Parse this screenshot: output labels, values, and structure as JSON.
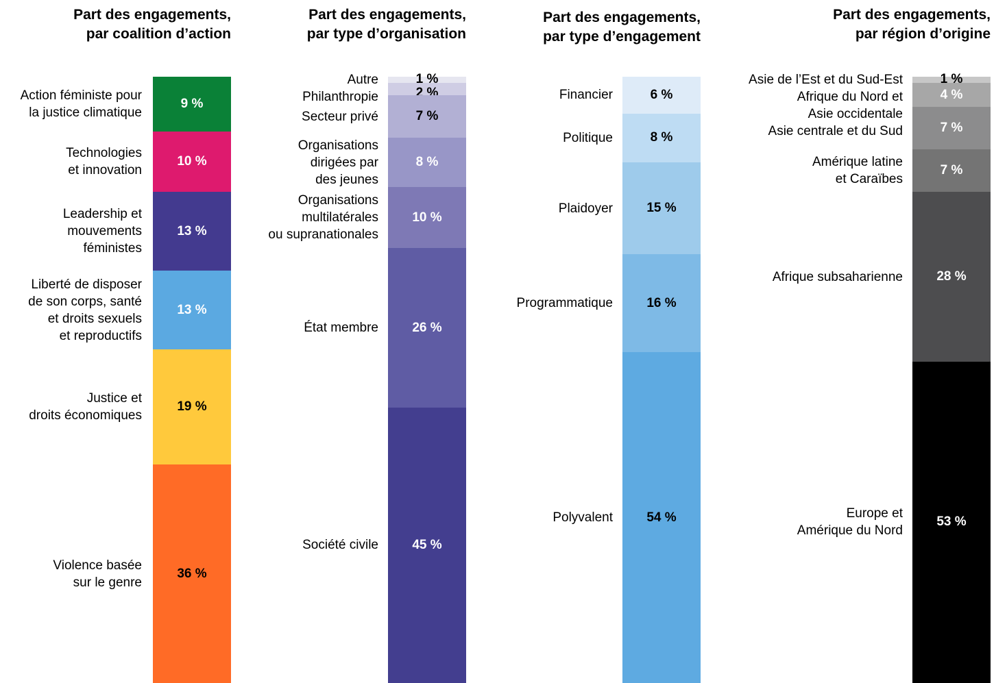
{
  "chart_data": [
    {
      "type": "stacked_bar",
      "title": [
        "Part des engagements,",
        "par coalition d’action"
      ],
      "series": [
        {
          "name": "Action féministe pour la justice climatique",
          "color": "#0a8137",
          "label_color": "#ffffff",
          "values": [
            9
          ],
          "value_labels": [
            "9 %"
          ]
        },
        {
          "name": "Technologies et innovation",
          "color": "#de1a6e",
          "label_color": "#ffffff",
          "values": [
            10
          ],
          "value_labels": [
            "10 %"
          ]
        },
        {
          "name": "Leadership et mouvements féministes",
          "color": "#433a8f",
          "label_color": "#ffffff",
          "values": [
            13
          ],
          "value_labels": [
            "13 %"
          ]
        },
        {
          "name": "Liberté de disposer de son corps, santé et droits sexuels et reproductifs",
          "color": "#5ba9e1",
          "label_color": "#ffffff",
          "values": [
            13
          ],
          "value_labels": [
            "13 %"
          ]
        },
        {
          "name": "Justice et droits économiques",
          "color": "#ffc93c",
          "label_color": "#000000",
          "values": [
            19
          ],
          "value_labels": [
            "19 %"
          ]
        },
        {
          "name": "Violence basée sur le genre",
          "color": "#ff6b26",
          "label_color": "#000000",
          "values": [
            36
          ],
          "value_labels": [
            "36 %"
          ]
        }
      ]
    },
    {
      "type": "stacked_bar",
      "title": [
        "Part des engagements,",
        "par type d’organisation"
      ],
      "series": [
        {
          "name": "Autre",
          "color": "#e6e6f0",
          "label_color": "#000000",
          "values": [
            1
          ],
          "value_labels": [
            "1 %"
          ]
        },
        {
          "name": "Philanthropie",
          "color": "#cfcde4",
          "label_color": "#000000",
          "values": [
            2
          ],
          "value_labels": [
            "2 %"
          ]
        },
        {
          "name": "Secteur privé",
          "color": "#b2b0d4",
          "label_color": "#000000",
          "values": [
            7
          ],
          "value_labels": [
            "7 %"
          ]
        },
        {
          "name": "Organisations dirigées par des jeunes",
          "color": "#9896c7",
          "label_color": "#ffffff",
          "values": [
            8
          ],
          "value_labels": [
            "8 %"
          ]
        },
        {
          "name": "Organisations multilatérales ou supranationales",
          "color": "#7e79b5",
          "label_color": "#ffffff",
          "values": [
            10
          ],
          "value_labels": [
            "10 %"
          ]
        },
        {
          "name": "État membre",
          "color": "#5f5ca4",
          "label_color": "#ffffff",
          "values": [
            26
          ],
          "value_labels": [
            "26 %"
          ]
        },
        {
          "name": "Société civile",
          "color": "#433e8f",
          "label_color": "#ffffff",
          "values": [
            45
          ],
          "value_labels": [
            "45 %"
          ]
        }
      ]
    },
    {
      "type": "stacked_bar",
      "title": [
        "Part des engagements,",
        "par type d’engagement"
      ],
      "series": [
        {
          "name": "Financier",
          "color": "#deebf8",
          "label_color": "#000000",
          "values": [
            6
          ],
          "value_labels": [
            "6 %"
          ]
        },
        {
          "name": "Politique",
          "color": "#bedcf3",
          "label_color": "#000000",
          "values": [
            8
          ],
          "value_labels": [
            "8 %"
          ]
        },
        {
          "name": "Plaidoyer",
          "color": "#9ecbeb",
          "label_color": "#000000",
          "values": [
            15
          ],
          "value_labels": [
            "15 %"
          ]
        },
        {
          "name": "Programmatique",
          "color": "#7ebae6",
          "label_color": "#000000",
          "values": [
            16
          ],
          "value_labels": [
            "16 %"
          ]
        },
        {
          "name": "Polyvalent",
          "color": "#5eaae1",
          "label_color": "#000000",
          "values": [
            54
          ],
          "value_labels": [
            "54 %"
          ]
        }
      ]
    },
    {
      "type": "stacked_bar",
      "title": [
        "Part des engagements,",
        "par région d’origine"
      ],
      "series": [
        {
          "name": "Asie de l’Est et du Sud-Est",
          "color": "#c7c7c7",
          "label_color": "#000000",
          "values": [
            1
          ],
          "value_labels": [
            "1 %"
          ]
        },
        {
          "name": "Afrique du Nord et Asie occidentale",
          "color": "#a7a7a7",
          "label_color": "#ffffff",
          "values": [
            4
          ],
          "value_labels": [
            "4 %"
          ]
        },
        {
          "name": "Asie centrale et du Sud",
          "color": "#8c8c8d",
          "label_color": "#ffffff",
          "values": [
            7
          ],
          "value_labels": [
            "7 %"
          ]
        },
        {
          "name": "Amérique latine et Caraïbes",
          "color": "#747474",
          "label_color": "#ffffff",
          "values": [
            7
          ],
          "value_labels": [
            "7 %"
          ]
        },
        {
          "name": "Afrique subsaharienne",
          "color": "#4d4d4f",
          "label_color": "#ffffff",
          "values": [
            28
          ],
          "value_labels": [
            "28 %"
          ]
        },
        {
          "name": "Europe et Amérique du Nord",
          "color": "#000000",
          "label_color": "#ffffff",
          "values": [
            53
          ],
          "value_labels": [
            "53 %"
          ]
        }
      ]
    }
  ]
}
